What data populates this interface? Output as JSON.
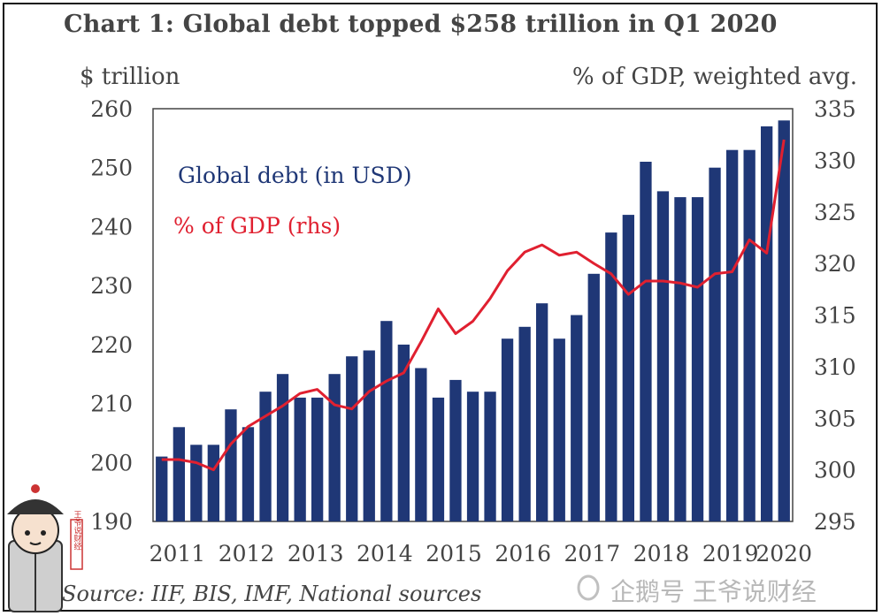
{
  "title": "Chart 1: Global debt topped $258 trillion in Q1 2020",
  "left_unit": "$ trillion",
  "right_unit": "% of GDP, weighted avg.",
  "source": "Source: IIF, BIS, IMF, National sources",
  "watermark": "企鹅号 王爷说财经",
  "logo_text": "王爷说财经",
  "colors": {
    "bars": "#1f3776",
    "line": "#e02030",
    "text": "#444444"
  },
  "chart_data": {
    "type": "bar",
    "x": [
      "2011-Q1",
      "2011-Q2",
      "2011-Q3",
      "2011-Q4",
      "2012-Q1",
      "2012-Q2",
      "2012-Q3",
      "2012-Q4",
      "2013-Q1",
      "2013-Q2",
      "2013-Q3",
      "2013-Q4",
      "2014-Q1",
      "2014-Q2",
      "2014-Q3",
      "2014-Q4",
      "2015-Q1",
      "2015-Q2",
      "2015-Q3",
      "2015-Q4",
      "2016-Q1",
      "2016-Q2",
      "2016-Q3",
      "2016-Q4",
      "2017-Q1",
      "2017-Q2",
      "2017-Q3",
      "2017-Q4",
      "2018-Q1",
      "2018-Q2",
      "2018-Q3",
      "2018-Q4",
      "2019-Q1",
      "2019-Q2",
      "2019-Q3",
      "2019-Q4",
      "2020-Q1"
    ],
    "x_tick_labels": [
      "2011",
      "2012",
      "2013",
      "2014",
      "2015",
      "2016",
      "2017",
      "2018",
      "2019",
      "2020"
    ],
    "series": [
      {
        "name": "Global debt (in USD)",
        "type": "bar",
        "axis": "left",
        "values": [
          201,
          206,
          203,
          203,
          209,
          206,
          212,
          215,
          211,
          211,
          215,
          218,
          219,
          224,
          220,
          216,
          211,
          214,
          212,
          212,
          221,
          223,
          227,
          221,
          225,
          232,
          239,
          242,
          251,
          246,
          245,
          245,
          250,
          253,
          253,
          257,
          258
        ]
      },
      {
        "name": "% of GDP (rhs)",
        "type": "line",
        "axis": "right",
        "values": [
          301,
          301,
          300.7,
          300,
          302.5,
          304.2,
          305.2,
          306.2,
          307.4,
          307.8,
          306.3,
          305.9,
          307.6,
          308.6,
          309.4,
          312.4,
          315.6,
          313.2,
          314.4,
          316.6,
          319.3,
          321.1,
          321.8,
          320.8,
          321.1,
          320,
          319,
          317,
          318.3,
          318.3,
          318.1,
          317.7,
          319,
          319.2,
          322.3,
          321,
          332
        ]
      }
    ],
    "xlabel": "",
    "ylabel": "$ trillion",
    "y2label": "% of GDP, weighted avg.",
    "ylim": [
      190,
      260
    ],
    "y_ticks": [
      190,
      200,
      210,
      220,
      230,
      240,
      250,
      260
    ],
    "y2lim": [
      295,
      335
    ],
    "y2_ticks": [
      295,
      300,
      305,
      310,
      315,
      320,
      325,
      330,
      335
    ],
    "legend": {
      "placement": "top-left",
      "entries": [
        "Global debt (in USD)",
        "% of GDP (rhs)"
      ]
    },
    "grid": false
  }
}
